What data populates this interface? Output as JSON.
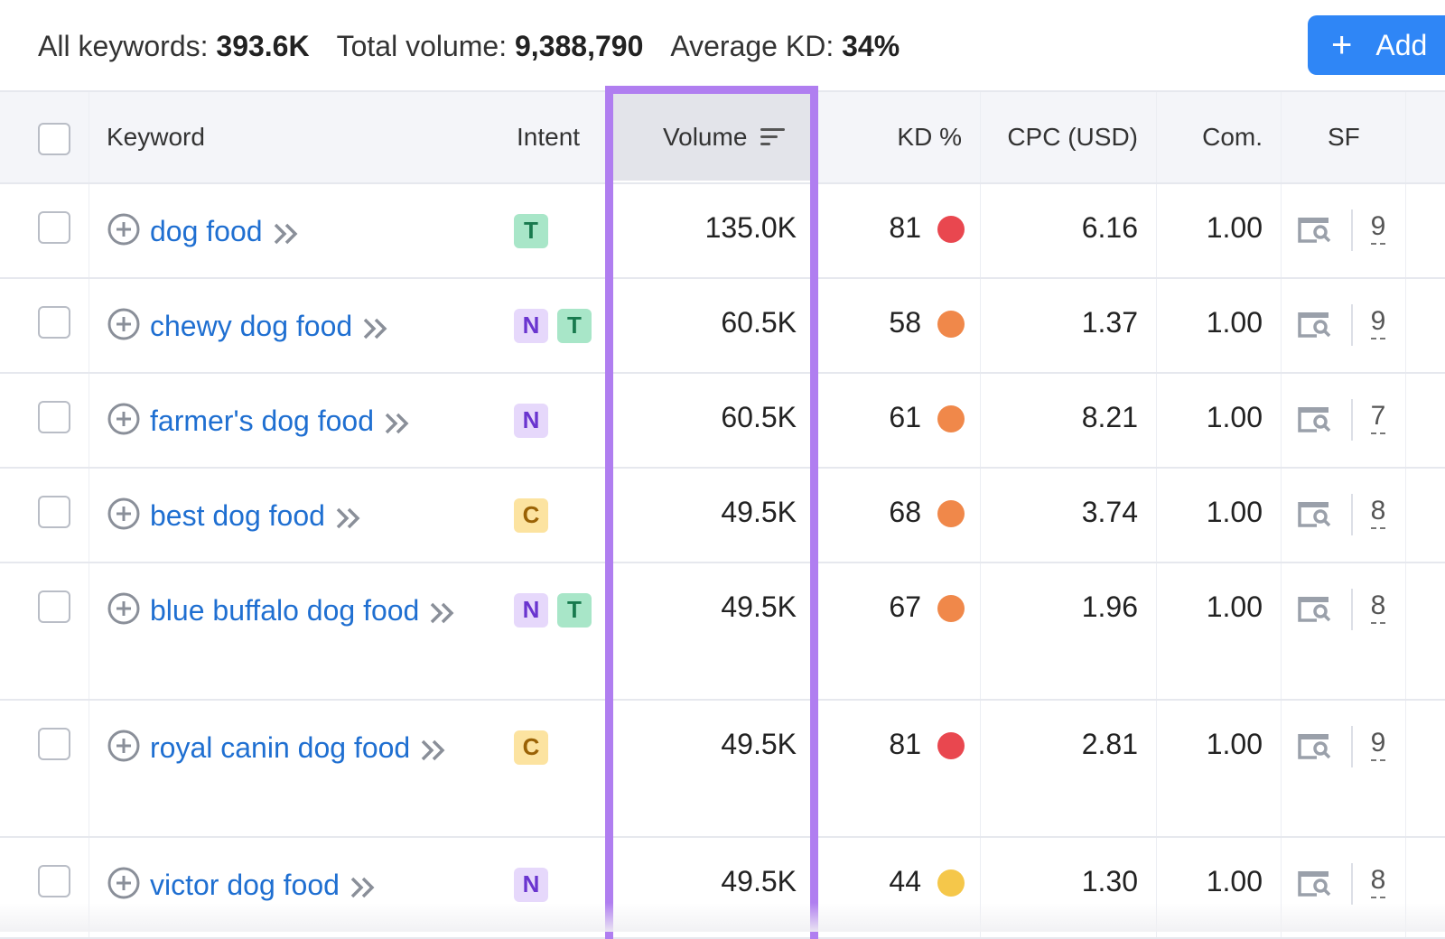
{
  "summary": {
    "all_keywords_label": "All keywords:",
    "all_keywords_value": "393.6K",
    "total_volume_label": "Total volume:",
    "total_volume_value": "9,388,790",
    "avg_kd_label": "Average KD:",
    "avg_kd_value": "34%"
  },
  "add_button": {
    "icon": "plus-icon",
    "label": "Add"
  },
  "columns": {
    "keyword": "Keyword",
    "intent": "Intent",
    "volume": "Volume",
    "kd": "KD %",
    "cpc": "CPC (USD)",
    "com": "Com.",
    "sf": "SF"
  },
  "sort": {
    "column": "volume",
    "icon": "sort-descending-icon"
  },
  "highlight_color": "#b07ef0",
  "kd_colors": {
    "red": "#e9474f",
    "orange": "#f0884a",
    "yellow": "#f5c74a"
  },
  "intent_colors": {
    "T": "#a8e6c8",
    "N": "#e6d8fb",
    "C": "#fce3a0"
  },
  "rows": [
    {
      "keyword": "dog food",
      "intents": [
        "T"
      ],
      "volume": "135.0K",
      "kd": "81",
      "kd_color": "red",
      "cpc": "6.16",
      "com": "1.00",
      "sf": "9"
    },
    {
      "keyword": "chewy dog food",
      "intents": [
        "N",
        "T"
      ],
      "volume": "60.5K",
      "kd": "58",
      "kd_color": "orange",
      "cpc": "1.37",
      "com": "1.00",
      "sf": "9"
    },
    {
      "keyword": "farmer's dog food",
      "intents": [
        "N"
      ],
      "volume": "60.5K",
      "kd": "61",
      "kd_color": "orange",
      "cpc": "8.21",
      "com": "1.00",
      "sf": "7"
    },
    {
      "keyword": "best dog food",
      "intents": [
        "C"
      ],
      "volume": "49.5K",
      "kd": "68",
      "kd_color": "orange",
      "cpc": "3.74",
      "com": "1.00",
      "sf": "8"
    },
    {
      "keyword": "blue buffalo dog food",
      "intents": [
        "N",
        "T"
      ],
      "volume": "49.5K",
      "kd": "67",
      "kd_color": "orange",
      "cpc": "1.96",
      "com": "1.00",
      "sf": "8"
    },
    {
      "keyword": "royal canin dog food",
      "intents": [
        "C"
      ],
      "volume": "49.5K",
      "kd": "81",
      "kd_color": "red",
      "cpc": "2.81",
      "com": "1.00",
      "sf": "9"
    },
    {
      "keyword": "victor dog food",
      "intents": [
        "N"
      ],
      "volume": "49.5K",
      "kd": "44",
      "kd_color": "yellow",
      "cpc": "1.30",
      "com": "1.00",
      "sf": "8"
    }
  ]
}
